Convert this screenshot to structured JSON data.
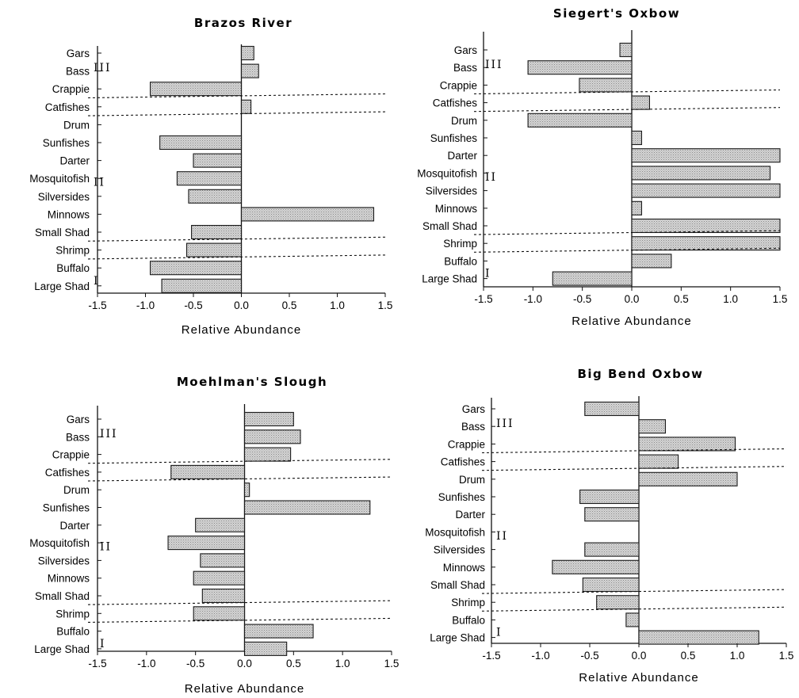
{
  "colors": {
    "bar_fill": "#d4d4d4",
    "bar_stroke": "#1a1a1a",
    "axis": "#111111",
    "divider": "#111111"
  },
  "chart_data": [
    {
      "type": "bar",
      "orientation": "horizontal",
      "title": "Brazos River",
      "xlabel": "Relative Abundance",
      "xlim": [
        -1.5,
        1.5
      ],
      "xticks": [
        "-1.5",
        "-1.0",
        "-0.5",
        "0.0",
        "0.5",
        "1.0",
        "1.5"
      ],
      "xtick_values": [
        -1.5,
        -1.0,
        -0.5,
        0.0,
        0.5,
        1.0,
        1.5
      ],
      "categories": [
        "Gars",
        "Bass",
        "Crappie",
        "Catfishes",
        "Drum",
        "Sunfishes",
        "Darter",
        "Mosquitofish",
        "Silversides",
        "Minnows",
        "Small Shad",
        "Shrimp",
        "Buffalo",
        "Large Shad"
      ],
      "values": [
        0.13,
        0.18,
        -0.95,
        0.1,
        0.0,
        -0.85,
        -0.5,
        -0.67,
        -0.55,
        1.38,
        -0.52,
        -0.57,
        -0.95,
        -0.83
      ],
      "groups": [
        {
          "label": "III",
          "start_index": 0,
          "end_index": 3
        },
        {
          "label": "II",
          "start_index": 4,
          "end_index": 11
        },
        {
          "label": "I",
          "start_index": 12,
          "end_index": 13
        }
      ],
      "dividers_after_index": [
        2,
        3,
        10,
        11
      ]
    },
    {
      "type": "bar",
      "orientation": "horizontal",
      "title": "Siegert's Oxbow",
      "xlabel": "Relative Abundance",
      "xlim": [
        -1.5,
        1.5
      ],
      "xticks": [
        "-1.5",
        "-1.0",
        "-0.5",
        "0.0",
        "0.5",
        "1.0",
        "1.5"
      ],
      "xtick_values": [
        -1.5,
        -1.0,
        -0.5,
        0.0,
        0.5,
        1.0,
        1.5
      ],
      "categories": [
        "Gars",
        "Bass",
        "Crappie",
        "Catfishes",
        "Drum",
        "Sunfishes",
        "Darter",
        "Mosquitofish",
        "Silversides",
        "Minnows",
        "Small Shad",
        "Shrimp",
        "Buffalo",
        "Large Shad"
      ],
      "values": [
        -0.12,
        -1.05,
        -0.53,
        0.18,
        -1.05,
        0.1,
        1.5,
        1.4,
        1.5,
        0.1,
        1.5,
        1.5,
        0.4,
        -0.8
      ],
      "groups": [
        {
          "label": "III",
          "start_index": 0,
          "end_index": 3
        },
        {
          "label": "II",
          "start_index": 4,
          "end_index": 11
        },
        {
          "label": "I",
          "start_index": 12,
          "end_index": 13
        }
      ],
      "dividers_after_index": [
        2,
        3,
        10,
        11
      ]
    },
    {
      "type": "bar",
      "orientation": "horizontal",
      "title": "Moehlman's Slough",
      "xlabel": "Relative Abundance",
      "xlim": [
        -1.5,
        1.5
      ],
      "xticks": [
        "-1.5",
        "-1.0",
        "-0.5",
        "0.0",
        "0.5",
        "1.0",
        "1.5"
      ],
      "xtick_values": [
        -1.5,
        -1.0,
        -0.5,
        0.0,
        0.5,
        1.0,
        1.5
      ],
      "categories": [
        "Gars",
        "Bass",
        "Crappie",
        "Catfishes",
        "Drum",
        "Sunfishes",
        "Darter",
        "Mosquitofish",
        "Silversides",
        "Minnows",
        "Small Shad",
        "Shrimp",
        "Buffalo",
        "Large Shad"
      ],
      "values": [
        0.5,
        0.57,
        0.47,
        -0.75,
        0.05,
        1.28,
        -0.5,
        -0.78,
        -0.45,
        -0.52,
        -0.43,
        -0.52,
        0.7,
        0.43
      ],
      "groups": [
        {
          "label": "III",
          "start_index": 0,
          "end_index": 3
        },
        {
          "label": "II",
          "start_index": 4,
          "end_index": 11
        },
        {
          "label": "I",
          "start_index": 12,
          "end_index": 13
        }
      ],
      "dividers_after_index": [
        2,
        3,
        10,
        11
      ]
    },
    {
      "type": "bar",
      "orientation": "horizontal",
      "title": "Big Bend Oxbow",
      "xlabel": "Relative Abundance",
      "xlim": [
        -1.5,
        1.5
      ],
      "xticks": [
        "-1.5",
        "-1.0",
        "-0.5",
        "0.0",
        "0.5",
        "1.0",
        "1.5"
      ],
      "xtick_values": [
        -1.5,
        -1.0,
        -0.5,
        0.0,
        0.5,
        1.0,
        1.5
      ],
      "categories": [
        "Gars",
        "Bass",
        "Crappie",
        "Catfishes",
        "Drum",
        "Sunfishes",
        "Darter",
        "Mosquitofish",
        "Silversides",
        "Minnows",
        "Small Shad",
        "Shrimp",
        "Buffalo",
        "Large Shad"
      ],
      "values": [
        -0.55,
        0.27,
        0.98,
        0.4,
        1.0,
        -0.6,
        -0.55,
        0.0,
        -0.55,
        -0.88,
        -0.57,
        -0.43,
        -0.13,
        1.22
      ],
      "groups": [
        {
          "label": "III",
          "start_index": 0,
          "end_index": 3
        },
        {
          "label": "II",
          "start_index": 4,
          "end_index": 11
        },
        {
          "label": "I",
          "start_index": 12,
          "end_index": 13
        }
      ],
      "dividers_after_index": [
        2,
        3,
        10,
        11
      ]
    }
  ]
}
